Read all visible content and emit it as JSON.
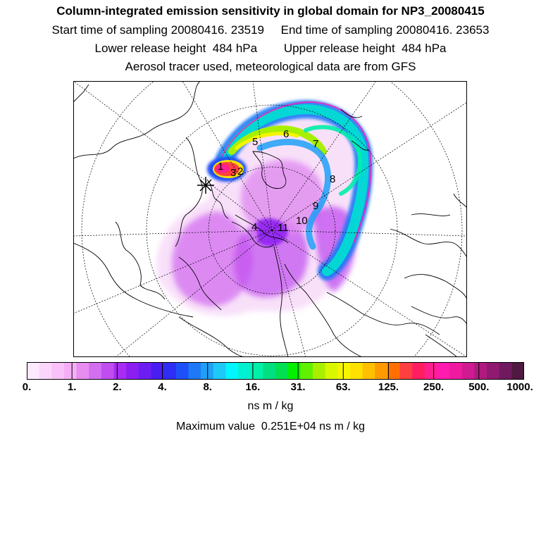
{
  "header": {
    "title": "Column-integrated emission sensitivity in global domain for NP3_20080415",
    "line2": "Start time of sampling 20080416. 23519     End time of sampling 20080416. 23653",
    "line3": "Lower release height  484 hPa        Upper release height  484 hPa",
    "line4": "Aerosol tracer used, meteorological data are from GFS"
  },
  "map": {
    "projection": "polar stereographic (north pole)",
    "labels": [
      "1",
      "2",
      "3",
      "4",
      "5",
      "6",
      "7",
      "8",
      "9",
      "10",
      "11"
    ],
    "release_marker": "star-cross"
  },
  "colorbar": {
    "colors": [
      "#fde9fd",
      "#fbd6fb",
      "#f8c2f8",
      "#f5aef5",
      "#e78cf0",
      "#d46ef0",
      "#c04df0",
      "#a82cf2",
      "#8c1ef2",
      "#6c1ef2",
      "#4a1ef2",
      "#2f2ef5",
      "#1e50f7",
      "#1e78f7",
      "#1ea0f7",
      "#1ec8f7",
      "#00f5ff",
      "#00f0d0",
      "#00f0a8",
      "#00e080",
      "#00e050",
      "#00f000",
      "#60f000",
      "#a8f000",
      "#d8f800",
      "#f5f500",
      "#ffe000",
      "#ffc000",
      "#ff9a00",
      "#ff7000",
      "#ff4040",
      "#ff1f60",
      "#ff1f90",
      "#ff1ab0",
      "#f01aa0",
      "#d01a90",
      "#b01a80",
      "#901a70",
      "#701a60",
      "#501a40"
    ],
    "tick_labels": [
      "0.",
      "1.",
      "2.",
      "4.",
      "8.",
      "16.",
      "31.",
      "63.",
      "125.",
      "250.",
      "500.",
      "1000."
    ],
    "unit": "ns m / kg"
  },
  "maximum_value_text": "Maximum value  0.251E+04 ns m / kg"
}
